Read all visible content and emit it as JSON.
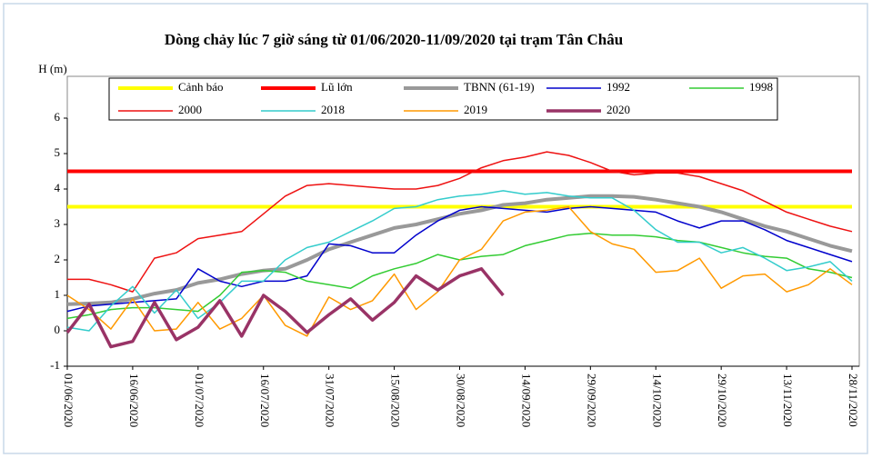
{
  "chart_data": {
    "type": "line",
    "title": "Dòng chảy lúc 7 giờ sáng từ 01/06/2020-11/09/2020 tại trạm Tân Châu",
    "y_label": "H (m)",
    "categories": [
      "01/06/2020",
      null,
      null,
      "16/06/2020",
      null,
      null,
      "01/07/2020",
      null,
      null,
      "16/07/2020",
      null,
      null,
      "31/07/2020",
      null,
      null,
      "15/08/2020",
      null,
      null,
      "30/08/2020",
      null,
      null,
      "14/09/2020",
      null,
      null,
      "29/09/2020",
      null,
      null,
      "14/10/2020",
      null,
      null,
      "29/10/2020",
      null,
      null,
      "13/11/2020",
      null,
      null,
      "28/11/2020"
    ],
    "ylim": [
      -1,
      6
    ],
    "yticks": [
      -1,
      0,
      1,
      2,
      3,
      4,
      5,
      6
    ],
    "series": [
      {
        "name": "Cảnh báo",
        "color": "#ffff00",
        "width": 4,
        "values": [
          3.5,
          3.5,
          3.5,
          3.5,
          3.5,
          3.5,
          3.5,
          3.5,
          3.5,
          3.5,
          3.5,
          3.5,
          3.5,
          3.5,
          3.5,
          3.5,
          3.5,
          3.5,
          3.5,
          3.5,
          3.5,
          3.5,
          3.5,
          3.5,
          3.5,
          3.5,
          3.5,
          3.5,
          3.5,
          3.5,
          3.5,
          3.5,
          3.5,
          3.5,
          3.5,
          3.5,
          3.5
        ]
      },
      {
        "name": "Lũ lớn",
        "color": "#ff0000",
        "width": 4,
        "values": [
          4.5,
          4.5,
          4.5,
          4.5,
          4.5,
          4.5,
          4.5,
          4.5,
          4.5,
          4.5,
          4.5,
          4.5,
          4.5,
          4.5,
          4.5,
          4.5,
          4.5,
          4.5,
          4.5,
          4.5,
          4.5,
          4.5,
          4.5,
          4.5,
          4.5,
          4.5,
          4.5,
          4.5,
          4.5,
          4.5,
          4.5,
          4.5,
          4.5,
          4.5,
          4.5,
          4.5,
          4.5
        ]
      },
      {
        "name": "TBNN (61-19)",
        "color": "#999999",
        "width": 4,
        "values": [
          0.75,
          0.77,
          0.8,
          0.9,
          1.05,
          1.15,
          1.35,
          1.45,
          1.6,
          1.7,
          1.75,
          2.0,
          2.3,
          2.5,
          2.7,
          2.9,
          3.0,
          3.15,
          3.3,
          3.4,
          3.55,
          3.6,
          3.7,
          3.75,
          3.8,
          3.8,
          3.78,
          3.7,
          3.6,
          3.5,
          3.35,
          3.15,
          2.95,
          2.8,
          2.6,
          2.4,
          2.25
        ]
      },
      {
        "name": "1992",
        "color": "#0000cc",
        "width": 1.5,
        "values": [
          0.55,
          0.7,
          0.75,
          0.8,
          0.85,
          0.9,
          1.75,
          1.4,
          1.25,
          1.4,
          1.4,
          1.55,
          2.45,
          2.4,
          2.2,
          2.2,
          2.7,
          3.1,
          3.4,
          3.5,
          3.45,
          3.4,
          3.35,
          3.45,
          3.5,
          3.45,
          3.4,
          3.35,
          3.1,
          2.9,
          3.1,
          3.1,
          2.85,
          2.55,
          2.35,
          2.15,
          1.95
        ]
      },
      {
        "name": "1998",
        "color": "#33cc33",
        "width": 1.5,
        "values": [
          0.35,
          0.45,
          0.6,
          0.65,
          0.65,
          0.6,
          0.55,
          1.0,
          1.65,
          1.7,
          1.65,
          1.4,
          1.3,
          1.2,
          1.55,
          1.75,
          1.9,
          2.15,
          2.0,
          2.1,
          2.15,
          2.4,
          2.55,
          2.7,
          2.75,
          2.7,
          2.7,
          2.65,
          2.55,
          2.5,
          2.35,
          2.2,
          2.1,
          2.05,
          1.75,
          1.65,
          1.5
        ]
      },
      {
        "name": "2000",
        "color": "#ee1111",
        "width": 1.5,
        "values": [
          1.45,
          1.45,
          1.3,
          1.1,
          2.05,
          2.2,
          2.6,
          2.7,
          2.8,
          3.3,
          3.8,
          4.1,
          4.15,
          4.1,
          4.05,
          4.0,
          4.0,
          4.1,
          4.3,
          4.6,
          4.8,
          4.9,
          5.05,
          4.95,
          4.75,
          4.5,
          4.4,
          4.45,
          4.45,
          4.35,
          4.15,
          3.95,
          3.65,
          3.35,
          3.15,
          2.95,
          2.8
        ]
      },
      {
        "name": "2018",
        "color": "#33cccc",
        "width": 1.5,
        "values": [
          0.1,
          0.0,
          0.7,
          1.25,
          0.5,
          1.15,
          0.35,
          0.8,
          1.4,
          1.4,
          2.0,
          2.35,
          2.5,
          2.8,
          3.1,
          3.45,
          3.5,
          3.7,
          3.8,
          3.85,
          3.95,
          3.85,
          3.9,
          3.8,
          3.75,
          3.75,
          3.4,
          2.85,
          2.5,
          2.5,
          2.2,
          2.35,
          2.05,
          1.7,
          1.8,
          1.95,
          1.4
        ]
      },
      {
        "name": "2019",
        "color": "#ff9900",
        "width": 1.5,
        "values": [
          1.0,
          0.6,
          0.05,
          0.9,
          0.0,
          0.05,
          0.8,
          0.05,
          0.35,
          1.0,
          0.15,
          -0.15,
          0.95,
          0.6,
          0.85,
          1.6,
          0.6,
          1.1,
          2.0,
          2.3,
          3.1,
          3.35,
          3.4,
          3.5,
          2.8,
          2.45,
          2.3,
          1.65,
          1.7,
          2.05,
          1.2,
          1.55,
          1.6,
          1.1,
          1.3,
          1.75,
          1.3
        ]
      },
      {
        "name": "2020",
        "color": "#993366",
        "width": 3.5,
        "values": [
          -0.05,
          0.75,
          -0.45,
          -0.3,
          0.8,
          -0.25,
          0.1,
          0.85,
          -0.15,
          1.0,
          0.55,
          -0.05,
          0.45,
          0.9,
          0.3,
          0.8,
          1.55,
          1.15,
          1.55,
          1.75,
          1.0,
          null,
          null,
          null,
          null,
          null,
          null,
          null,
          null,
          null,
          null,
          null,
          null,
          null,
          null,
          null,
          null
        ]
      }
    ]
  }
}
